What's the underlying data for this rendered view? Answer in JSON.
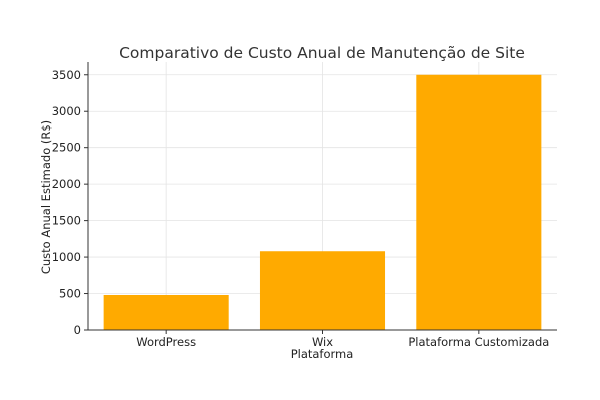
{
  "chart_data": {
    "type": "bar",
    "title": "Comparativo de Custo Anual de Manutenção de Site",
    "xlabel": "Plataforma",
    "ylabel": "Custo Anual Estimado (R$)",
    "categories": [
      "WordPress",
      "Wix",
      "Plataforma Customizada"
    ],
    "values": [
      480,
      1080,
      3500
    ],
    "ylim": [
      0,
      3675
    ],
    "yticks": [
      0,
      500,
      1000,
      1500,
      2000,
      2500,
      3000,
      3500
    ],
    "grid": true,
    "bar_color": "#FFAA00"
  }
}
